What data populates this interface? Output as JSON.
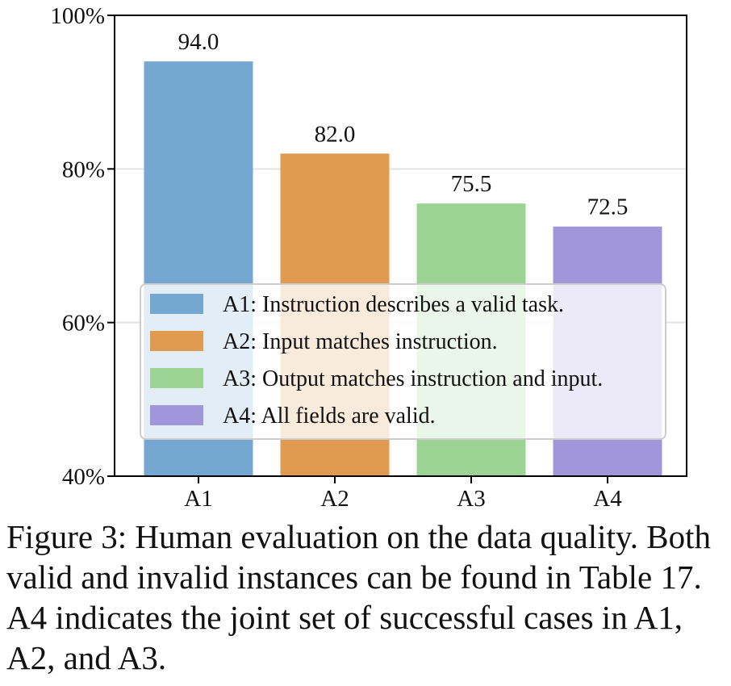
{
  "chart_data": {
    "type": "bar",
    "categories": [
      "A1",
      "A2",
      "A3",
      "A4"
    ],
    "values": [
      94.0,
      82.0,
      75.5,
      72.5
    ],
    "value_labels": [
      "94.0",
      "82.0",
      "75.5",
      "72.5"
    ],
    "colors": [
      "#74a7d2",
      "#e09a51",
      "#9dd394",
      "#a196da"
    ],
    "ylim": [
      40,
      100
    ],
    "yticks": [
      40,
      60,
      80,
      100
    ],
    "ytick_labels": [
      "40%",
      "60%",
      "80%",
      "100%"
    ],
    "grid": true,
    "legend_position": "lower-center",
    "legend": [
      {
        "series": "A1",
        "label": "A1: Instruction describes a valid task."
      },
      {
        "series": "A2",
        "label": "A2: Input matches instruction."
      },
      {
        "series": "A3",
        "label": "A3: Output matches instruction and input."
      },
      {
        "series": "A4",
        "label": "A4: All fields are valid."
      }
    ]
  },
  "caption": "Figure 3: Human evaluation on the data quality. Both valid and invalid instances can be found in Table 17. A4 indicates the joint set of successful cases in A1, A2, and A3."
}
